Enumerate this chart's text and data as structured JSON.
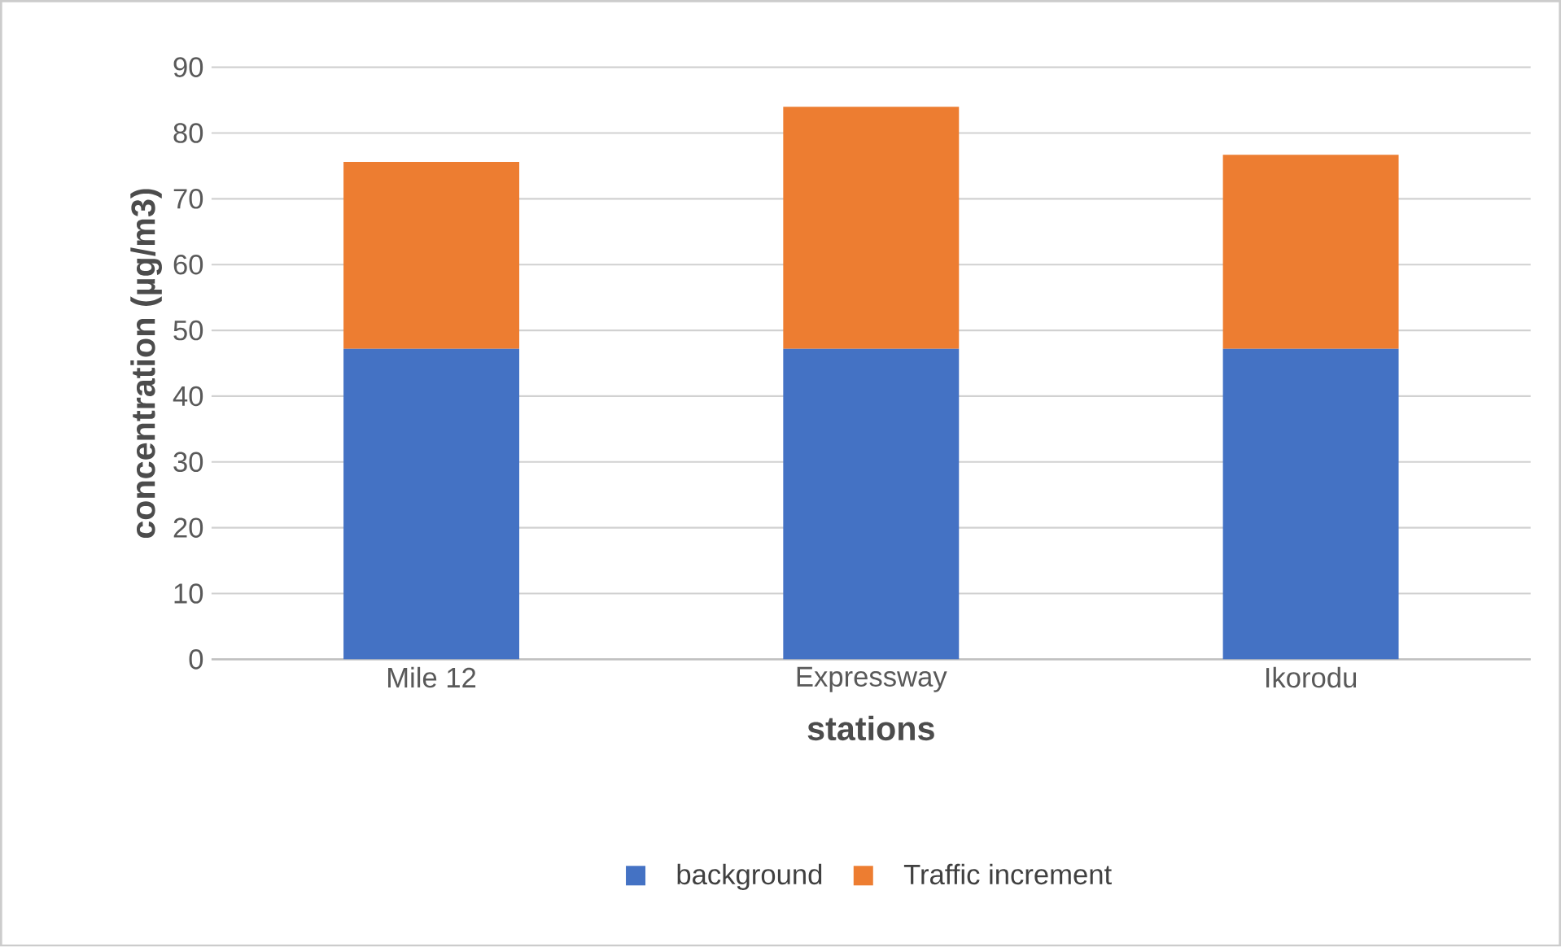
{
  "chart_data": {
    "type": "bar",
    "stacked": true,
    "xlabel": "stations",
    "ylabel": "concentration (µg/m3)",
    "categories": [
      "Mile 12",
      "Expressway",
      "Ikorodu"
    ],
    "series": [
      {
        "name": "background",
        "color": "#4472c4",
        "values": [
          47.2,
          47.2,
          47.2
        ]
      },
      {
        "name": "Traffic increment",
        "color": "#ed7d31",
        "values": [
          28.4,
          36.8,
          29.5
        ]
      }
    ],
    "ylim": [
      0,
      90
    ],
    "yticks": [
      0,
      10,
      20,
      30,
      40,
      50,
      60,
      70,
      80,
      90
    ],
    "grid": "y",
    "legend": "bottom"
  }
}
